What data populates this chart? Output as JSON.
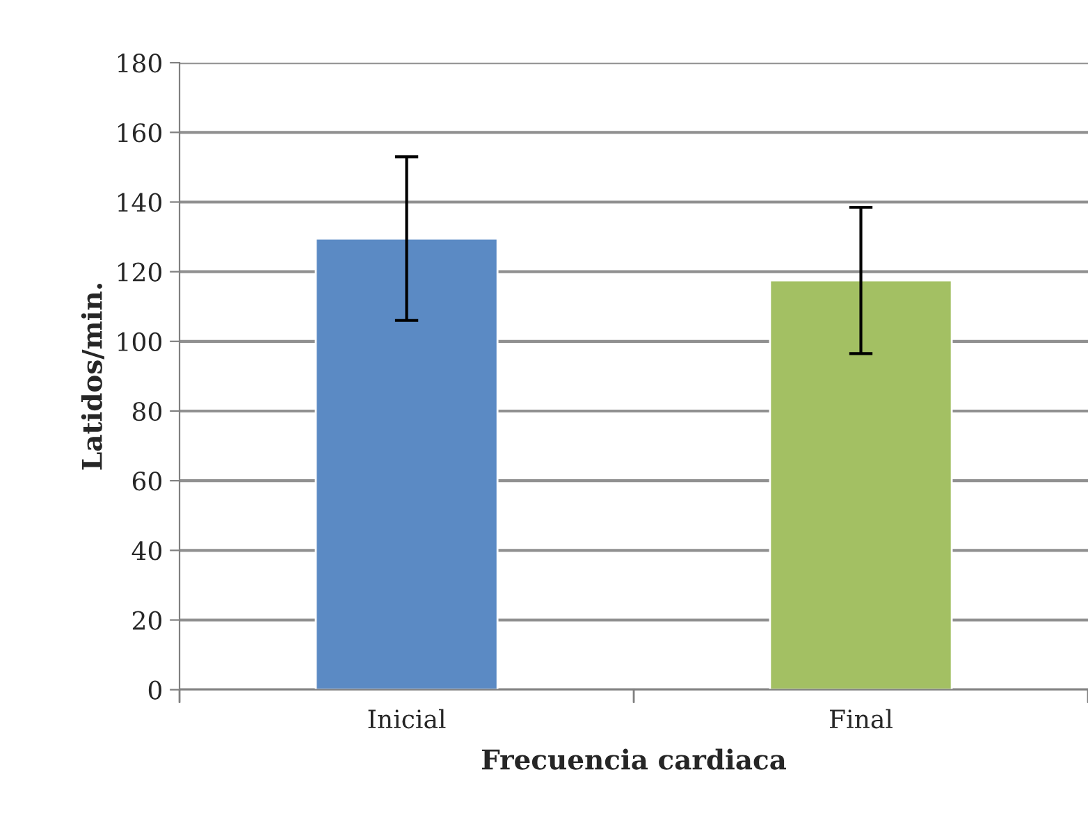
{
  "chart_data": {
    "type": "bar",
    "xlabel": "Frecuencia cardiaca",
    "ylabel": "Latidos/min.",
    "categories": [
      "Inicial",
      "Final"
    ],
    "values": [
      129.5,
      117.5
    ],
    "colors": [
      "#5b8ac4",
      "#a3c063"
    ],
    "errors": [
      23.5,
      21
    ],
    "ylim": [
      0,
      180
    ],
    "yticks": [
      0,
      20,
      40,
      60,
      80,
      100,
      120,
      140,
      160,
      180
    ],
    "grid": "y"
  }
}
